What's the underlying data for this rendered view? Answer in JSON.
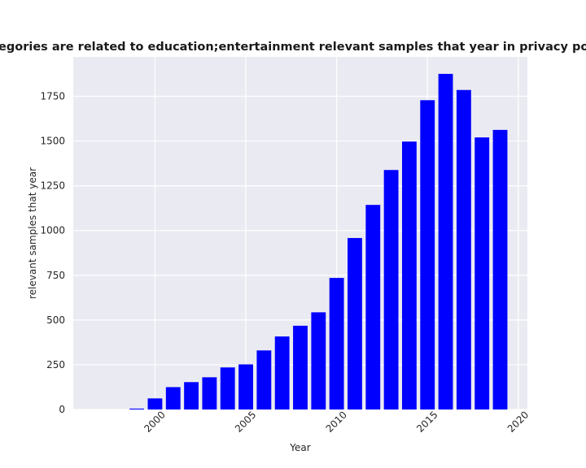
{
  "chart_data": {
    "type": "bar",
    "title": "categories are related to education;entertainment relevant samples that year in privacy policies",
    "xlabel": "Year",
    "ylabel": "relevant samples that year",
    "x": [
      1999,
      2000,
      2001,
      2002,
      2003,
      2004,
      2005,
      2006,
      2007,
      2008,
      2009,
      2010,
      2011,
      2012,
      2013,
      2014,
      2015,
      2016,
      2017,
      2018,
      2019
    ],
    "values": [
      5,
      62,
      125,
      153,
      180,
      235,
      252,
      330,
      408,
      468,
      543,
      735,
      958,
      1143,
      1338,
      1497,
      1728,
      1875,
      1785,
      1520,
      1562
    ],
    "bar_color": "#0000ff",
    "xlim": [
      1995.5,
      2020.5
    ],
    "ylim": [
      0,
      1970
    ],
    "xticks": [
      2000,
      2005,
      2010,
      2015,
      2020
    ],
    "yticks": [
      0,
      250,
      500,
      750,
      1000,
      1250,
      1500,
      1750
    ],
    "grid": true,
    "background": "#eaeaf2"
  }
}
